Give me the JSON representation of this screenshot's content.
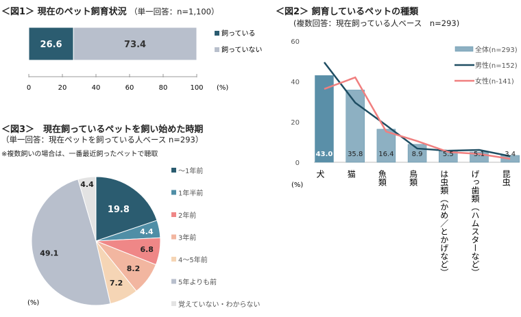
{
  "chart_data": [
    {
      "type": "bar",
      "title": "＜図1＞ 現在のペット飼育状況",
      "subtitle": "（単一回答：n=1,100）",
      "stacked": true,
      "orientation": "horizontal",
      "series": [
        {
          "name": "飼っている",
          "values": [
            26.6
          ],
          "color": "#2b5c70"
        },
        {
          "name": "飼っていない",
          "values": [
            73.4
          ],
          "color": "#b8bfcc"
        }
      ],
      "xlim": [
        0,
        100
      ],
      "xticks": [
        "0",
        "20",
        "40",
        "60",
        "80",
        "100"
      ],
      "unit": "(%)",
      "legend": "right"
    },
    {
      "type": "bar",
      "title": "＜図2＞ 飼育しているペットの種類",
      "subtitle": "(複数回答：現在飼っている人ベース　n=293)",
      "categories": [
        "犬",
        "猫",
        "魚類",
        "鳥類",
        "は虫類（かめ／とかげなど）",
        "げっ歯類（ハムスターなど）",
        "昆虫"
      ],
      "series": [
        {
          "name": "全体(n=293)",
          "type": "bar",
          "values": [
            43.0,
            35.8,
            16.4,
            8.9,
            5.5,
            5.1,
            3.4
          ],
          "color": "#8db0c2"
        },
        {
          "name": "男性(n=152)",
          "type": "line",
          "values": [
            49.5,
            29.5,
            18.3,
            6.8,
            5.7,
            6.1,
            3.0
          ],
          "color": "#1e4d62"
        },
        {
          "name": "女性(n-141)",
          "type": "line",
          "values": [
            36.3,
            42.0,
            15.2,
            10.5,
            5.1,
            4.1,
            1.7
          ],
          "color": "#f07f7f"
        }
      ],
      "ylim": [
        0,
        60
      ],
      "yticks": [
        "0",
        "20",
        "40",
        "60"
      ],
      "unit": "(%)",
      "legend": "top-right"
    },
    {
      "type": "pie",
      "title": "＜図3＞　現在飼っているペットを飼い始めた時期",
      "subtitle": "（単一回答：現在ペットを飼っている人ベース n=293）",
      "note": "※複数飼いの場合は、一番最近飼ったペットで聴取",
      "categories": [
        "～1年前",
        "1年半前",
        "2年前",
        "3年前",
        "4～5年前",
        "5年よりも前",
        "覚えていない・わからない"
      ],
      "values": [
        19.8,
        4.4,
        6.8,
        8.2,
        7.2,
        49.1,
        4.4
      ],
      "colors": [
        "#2b5c70",
        "#4f8ea6",
        "#ef8787",
        "#f2b6a0",
        "#f5d5b5",
        "#b8bfcc",
        "#e3e3e3"
      ],
      "labels": [
        "19.8",
        "4.4",
        "6.8",
        "8.2",
        "7.2",
        "49.1",
        "4.4"
      ],
      "unit": "(%)",
      "legend": "right"
    }
  ]
}
